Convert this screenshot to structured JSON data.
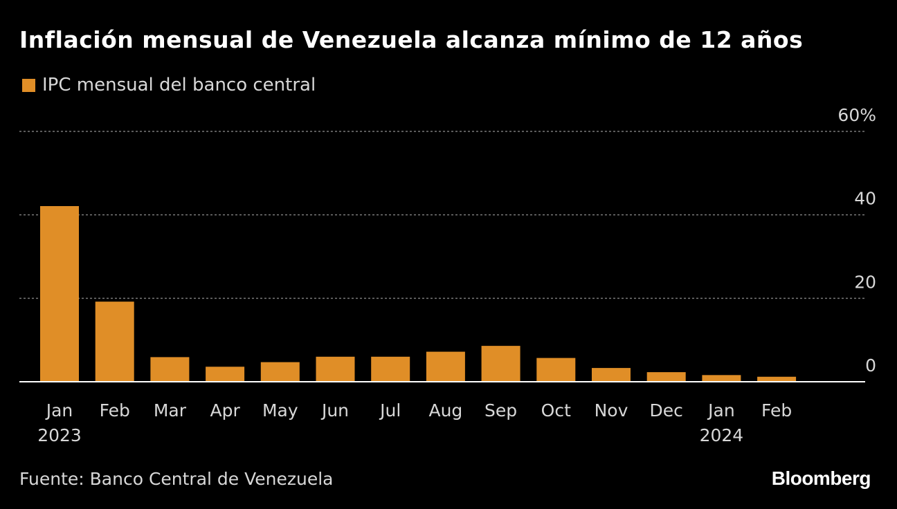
{
  "title": "Inflación mensual de Venezuela alcanza mínimo de 12 años",
  "legend": {
    "label": "IPC mensual del banco central",
    "color": "#e08e27"
  },
  "source": "Fuente: Banco Central de Venezuela",
  "brand": "Bloomberg",
  "chart_data": {
    "type": "bar",
    "title": "Inflación mensual de Venezuela alcanza mínimo de 12 años",
    "categories": [
      "Jan",
      "Feb",
      "Mar",
      "Apr",
      "May",
      "Jun",
      "Jul",
      "Aug",
      "Sep",
      "Oct",
      "Nov",
      "Dec",
      "Jan",
      "Feb"
    ],
    "year_labels": [
      "2023",
      "",
      "",
      "",
      "",
      "",
      "",
      "",
      "",
      "",
      "",
      "",
      "2024",
      ""
    ],
    "series": [
      {
        "name": "IPC mensual del banco central",
        "values": [
          42.1,
          19.2,
          5.9,
          3.6,
          4.7,
          6.0,
          6.0,
          7.2,
          8.6,
          5.7,
          3.3,
          2.3,
          1.6,
          1.2
        ]
      }
    ],
    "ylim": [
      0,
      60
    ],
    "yticks": [
      0,
      20,
      40,
      60
    ],
    "ytick_labels": [
      "0",
      "20",
      "40",
      "60%"
    ],
    "ylabel": "",
    "xlabel": "",
    "grid": true,
    "legend_position": "top-left",
    "bar_color": "#e08e27",
    "grid_color": "#7a7a7a",
    "axis_color": "#ffffff",
    "tick_text_color": "#d8d8d8"
  }
}
